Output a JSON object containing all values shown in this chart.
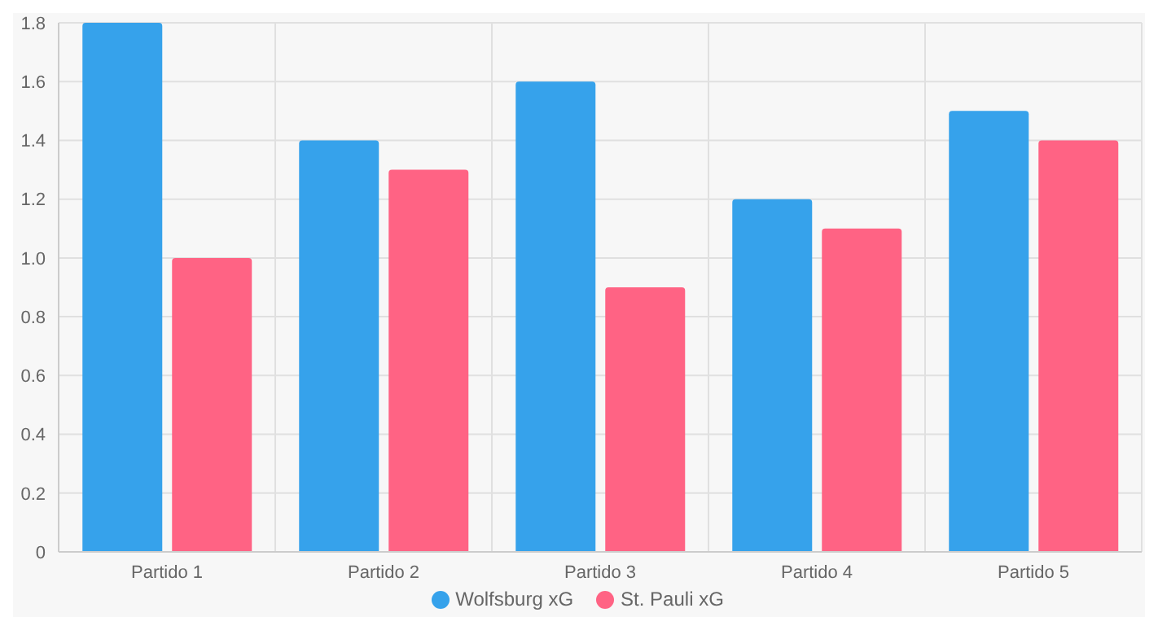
{
  "chart_data": {
    "type": "bar",
    "categories": [
      "Partido 1",
      "Partido 2",
      "Partido 3",
      "Partido 4",
      "Partido 5"
    ],
    "series": [
      {
        "name": "Wolfsburg xG",
        "color": "#36a2eb",
        "values": [
          1.8,
          1.4,
          1.6,
          1.2,
          1.5
        ]
      },
      {
        "name": "St. Pauli xG",
        "color": "#ff6384",
        "values": [
          1.0,
          1.3,
          0.9,
          1.1,
          1.4
        ]
      }
    ],
    "ylim": [
      0,
      1.8
    ],
    "yticks": [
      0,
      {
        "value": 0.2,
        "label": "0.2"
      },
      {
        "value": 0.4,
        "label": "0.4"
      },
      {
        "value": 0.6,
        "label": "0.6"
      },
      {
        "value": 0.8,
        "label": "0.8"
      },
      {
        "value": 1,
        "label": "1.0"
      },
      {
        "value": 1.2,
        "label": "1.2"
      },
      {
        "value": 1.4,
        "label": "1.4"
      },
      {
        "value": 1.6,
        "label": "1.6"
      },
      {
        "value": 1.8,
        "label": "1.8"
      }
    ],
    "grid": true,
    "legend": "bottom"
  }
}
